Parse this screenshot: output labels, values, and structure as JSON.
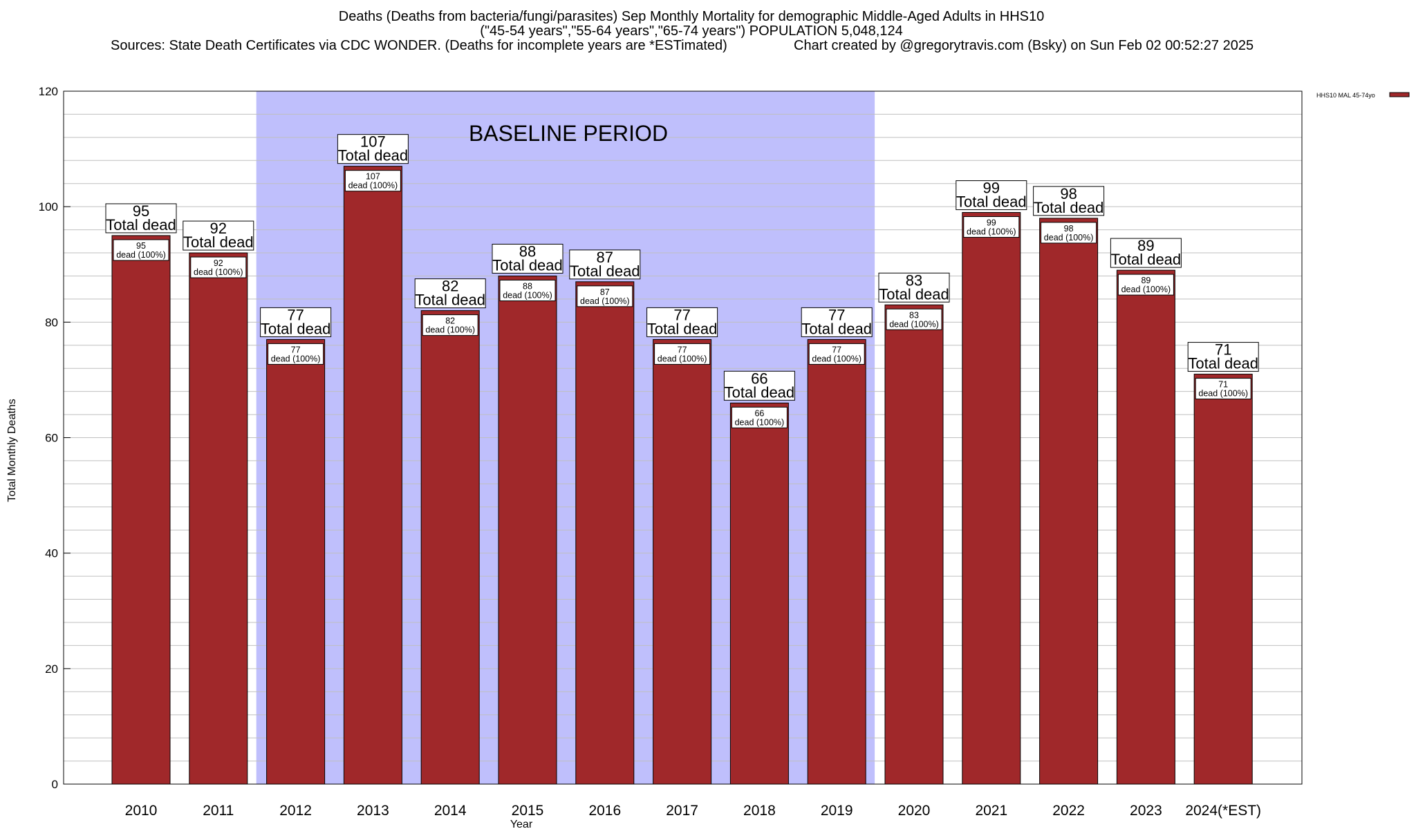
{
  "title": {
    "line1": "Deaths (Deaths from bacteria/fungi/parasites) Sep Monthly Mortality for demographic Middle-Aged Adults in HHS10",
    "line2": "(\"45-54 years\",\"55-64 years\",\"65-74 years\") POPULATION 5,048,124",
    "line3_left": "Sources: State Death Certificates via CDC WONDER. (Deaths for incomplete years are *ESTimated)",
    "line3_right": "Chart created by @gregorytravis.com (Bsky) on Sun Feb 02 00:52:27 2025"
  },
  "legend": {
    "label": "HHS10 MAL 45-74yo",
    "color": "#a0282a"
  },
  "baseline_label": "BASELINE PERIOD",
  "big_label_suffix": "Total dead",
  "small_label_suffix": "dead (100%)",
  "colors": {
    "bar": "#a0282a",
    "baseline_shade": "#bfbffc",
    "grid": "#bfbfbf"
  },
  "chart_data": {
    "type": "bar",
    "title": "Deaths (Deaths from bacteria/fungi/parasites) Sep Monthly Mortality for demographic Middle-Aged Adults in HHS10",
    "xlabel": "Year",
    "ylabel": "Total Monthly Deaths",
    "ylim": [
      0,
      120
    ],
    "yticks": [
      0,
      20,
      40,
      60,
      80,
      100,
      120
    ],
    "grid": true,
    "legend_position": "top-right",
    "categories": [
      "2010",
      "2011",
      "2012",
      "2013",
      "2014",
      "2015",
      "2016",
      "2017",
      "2018",
      "2019",
      "2020",
      "2021",
      "2022",
      "2023",
      "2024(*EST)"
    ],
    "series": [
      {
        "name": "HHS10 MAL 45-74yo",
        "values": [
          95,
          92,
          77,
          107,
          82,
          88,
          87,
          77,
          66,
          77,
          83,
          99,
          98,
          89,
          71
        ]
      }
    ],
    "baseline_period": [
      "2012",
      "2019"
    ]
  }
}
